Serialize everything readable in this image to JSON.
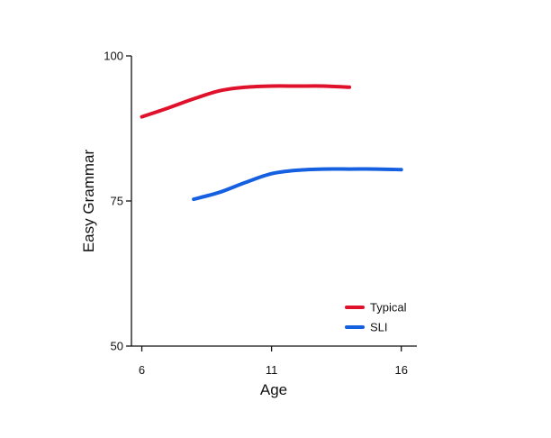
{
  "chart_data": {
    "type": "line",
    "xlabel": "Age",
    "ylabel": "Easy Grammar",
    "xlim": [
      5.6,
      16.6
    ],
    "ylim": [
      50,
      100
    ],
    "x_ticks": [
      6,
      11,
      16
    ],
    "y_ticks": [
      50,
      75,
      100
    ],
    "grid": false,
    "legend_position": "bottom-right",
    "series": [
      {
        "name": "Typical",
        "color": "#e0112b",
        "x": [
          6,
          7,
          8,
          9,
          10,
          11,
          12,
          13,
          14
        ],
        "y": [
          89.5,
          91.0,
          92.6,
          94.0,
          94.6,
          94.8,
          94.8,
          94.8,
          94.6
        ]
      },
      {
        "name": "SLI",
        "color": "#1560e0",
        "x": [
          8,
          9,
          10,
          11,
          12,
          13,
          14,
          15,
          16
        ],
        "y": [
          75.3,
          76.5,
          78.2,
          79.7,
          80.3,
          80.5,
          80.5,
          80.5,
          80.4
        ]
      }
    ]
  }
}
